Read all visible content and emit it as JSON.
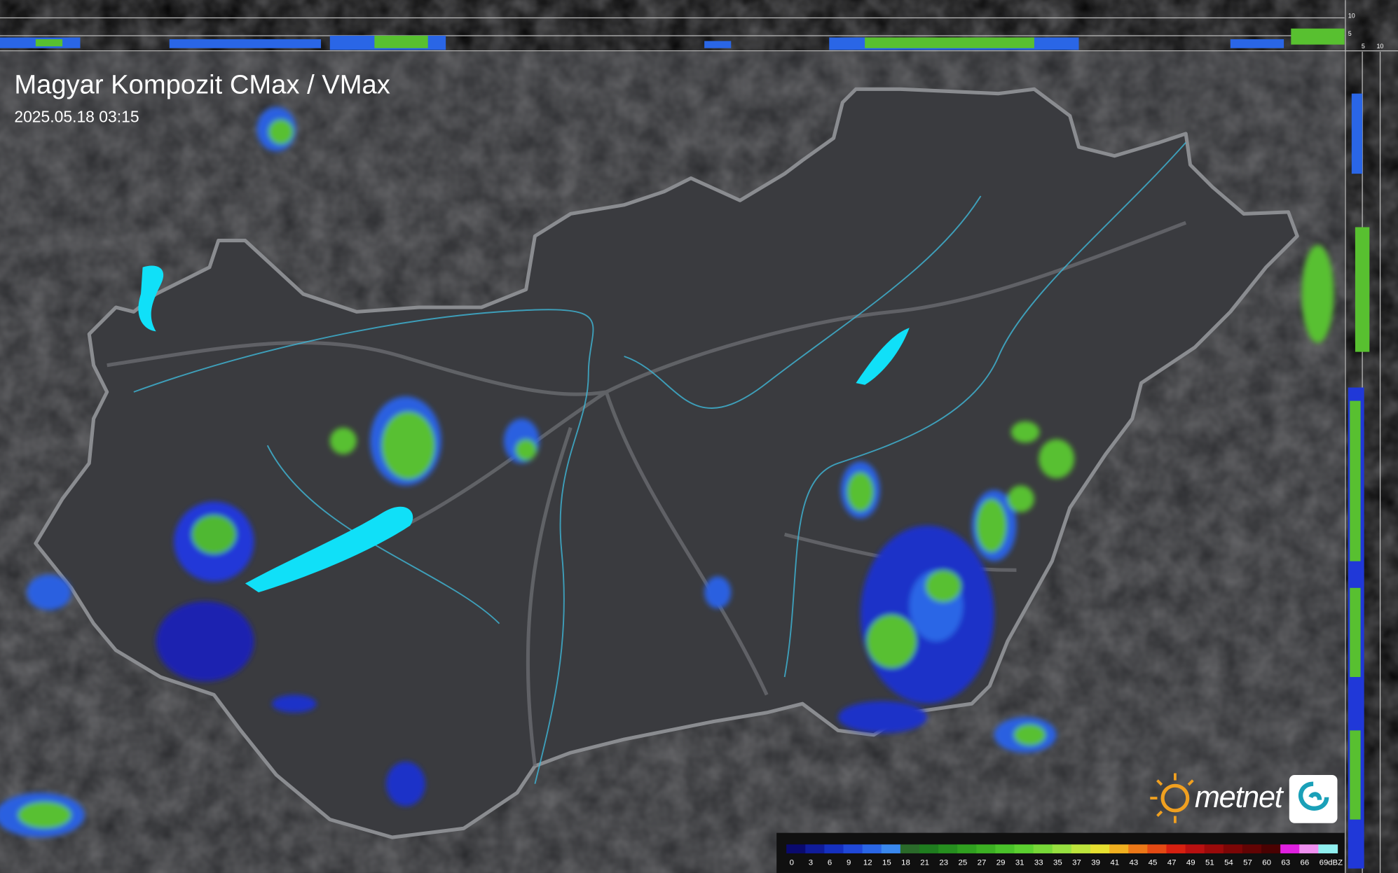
{
  "header": {
    "title": "Magyar Kompozit CMax / VMax",
    "timestamp": "2025.05.18 03:15"
  },
  "top_profile": {
    "labels": [
      "10",
      "5"
    ]
  },
  "side_profile": {
    "labels": [
      "5",
      "10"
    ]
  },
  "legend": {
    "labels": [
      "0",
      "3",
      "6",
      "9",
      "12",
      "15",
      "18",
      "21",
      "23",
      "25",
      "27",
      "29",
      "31",
      "33",
      "35",
      "37",
      "39",
      "41",
      "43",
      "45",
      "47",
      "49",
      "51",
      "54",
      "57",
      "60",
      "63",
      "66",
      "69"
    ],
    "unit": "dBZ",
    "colors": [
      "#0a0a6e",
      "#101c9a",
      "#1530c0",
      "#2048d8",
      "#2a66e6",
      "#3a88ee",
      "#2a6a2a",
      "#1f7d1f",
      "#268f1f",
      "#30a020",
      "#3cb023",
      "#4ac22a",
      "#5cd030",
      "#78d838",
      "#98e040",
      "#bde43c",
      "#e6e030",
      "#f0b020",
      "#ec7818",
      "#e44a14",
      "#d62010",
      "#b81010",
      "#9a0a0a",
      "#7c0606",
      "#620404",
      "#4a0202",
      "#e020e0",
      "#f090f0",
      "#90f0f0"
    ]
  },
  "logo": {
    "text": "metnet"
  }
}
